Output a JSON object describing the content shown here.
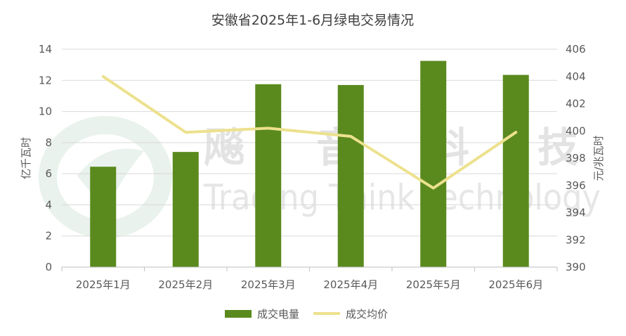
{
  "chart_data": {
    "type": "bar",
    "title": "安徽省2025年1-6月绿电交易情况",
    "categories": [
      "2025年1月",
      "2025年2月",
      "2025年3月",
      "2025年4月",
      "2025年5月",
      "2025年6月"
    ],
    "series": [
      {
        "name": "成交电量",
        "type": "bar",
        "axis": "left",
        "color": "#5a8a1e",
        "values": [
          6.45,
          7.4,
          11.75,
          11.7,
          13.25,
          12.35
        ]
      },
      {
        "name": "成交均价",
        "type": "line",
        "axis": "right",
        "color": "#ede18e",
        "values": [
          404.0,
          399.9,
          400.2,
          399.6,
          395.8,
          399.9
        ]
      }
    ],
    "ylabel": "亿千瓦时",
    "ylim": [
      0,
      14
    ],
    "yticks": [
      "0",
      "2",
      "4",
      "6",
      "8",
      "10",
      "12",
      "14"
    ],
    "y2label": "元/兆瓦时",
    "y2lim": [
      390,
      406
    ],
    "y2ticks": [
      "390",
      "392",
      "394",
      "396",
      "398",
      "400",
      "402",
      "404",
      "406"
    ],
    "grid": true,
    "legend": "bottom"
  },
  "watermark": {
    "cn": [
      "飚",
      "音",
      "科",
      "技"
    ],
    "en": "Trading Think Technology"
  }
}
